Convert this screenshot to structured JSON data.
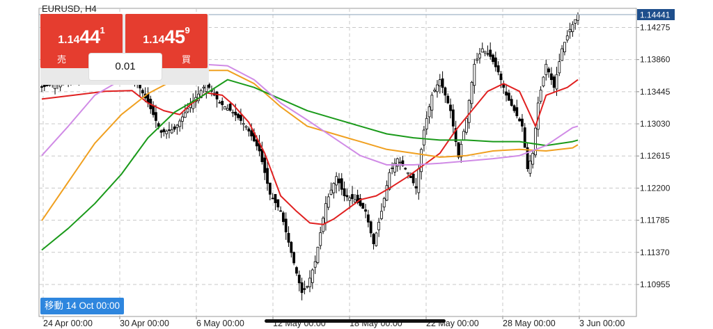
{
  "header": {
    "symbol": "EURUSD, H4"
  },
  "quote": {
    "sell": {
      "prefix": "1.14",
      "big": "44",
      "sup": "1",
      "label": "売"
    },
    "buy": {
      "prefix": "1.14",
      "big": "45",
      "sup": "9",
      "label": "買"
    },
    "lot": "0.01"
  },
  "goto": {
    "label": "移動 14 Oct 00:00"
  },
  "colors": {
    "bull": "#ffffff",
    "bear": "#000000",
    "ma_red": "#e02020",
    "ma_orange": "#f0a020",
    "ma_green": "#1a9a1a",
    "ma_violet": "#d08be6",
    "grid": "#c8c8c8",
    "price_marker": "#1e4f8c"
  },
  "chart_data": {
    "type": "candlestick",
    "symbol": "EURUSD",
    "timeframe": "H4",
    "current_price": 1.14441,
    "y_ticks": [
      "1.14441",
      "1.14275",
      "1.13860",
      "1.13445",
      "1.13030",
      "1.12615",
      "1.12200",
      "1.11785",
      "1.11370",
      "1.10955"
    ],
    "x_ticks": [
      "24 Apr 00:00",
      "30 Apr 00:00",
      "6 May 00:00",
      "12 May 00:00",
      "18 May 00:00",
      "22 May 00:00",
      "28 May 00:00",
      "3 Jun 00:00"
    ],
    "ylim": [
      1.1052,
      1.1458
    ],
    "grid": true,
    "close_path": [
      [
        0,
        1.135
      ],
      [
        10,
        1.136
      ],
      [
        20,
        1.1365
      ],
      [
        28,
        1.1372
      ],
      [
        35,
        1.1362
      ],
      [
        40,
        1.133
      ],
      [
        45,
        1.1292
      ],
      [
        50,
        1.1296
      ],
      [
        56,
        1.1328
      ],
      [
        62,
        1.1355
      ],
      [
        67,
        1.133
      ],
      [
        72,
        1.1318
      ],
      [
        77,
        1.13
      ],
      [
        82,
        1.1268
      ],
      [
        86,
        1.1212
      ],
      [
        90,
        1.119
      ],
      [
        93,
        1.115
      ],
      [
        96,
        1.111
      ],
      [
        98,
        1.1085
      ],
      [
        100,
        1.1093
      ],
      [
        103,
        1.1125
      ],
      [
        107,
        1.12
      ],
      [
        111,
        1.1235
      ],
      [
        114,
        1.121
      ],
      [
        118,
        1.1205
      ],
      [
        122,
        1.119
      ],
      [
        125,
        1.1148
      ],
      [
        128,
        1.119
      ],
      [
        131,
        1.124
      ],
      [
        134,
        1.1258
      ],
      [
        138,
        1.124
      ],
      [
        141,
        1.122
      ],
      [
        144,
        1.1295
      ],
      [
        147,
        1.134
      ],
      [
        150,
        1.136
      ],
      [
        154,
        1.132
      ],
      [
        157,
        1.126
      ],
      [
        160,
        1.131
      ],
      [
        163,
        1.138
      ],
      [
        166,
        1.14
      ],
      [
        169,
        1.139
      ],
      [
        172,
        1.137
      ],
      [
        175,
        1.134
      ],
      [
        178,
        1.132
      ],
      [
        181,
        1.13
      ],
      [
        183,
        1.1245
      ],
      [
        185,
        1.1265
      ],
      [
        187,
        1.133
      ],
      [
        190,
        1.138
      ],
      [
        193,
        1.135
      ],
      [
        196,
        1.14
      ],
      [
        199,
        1.1425
      ],
      [
        202,
        1.1444
      ]
    ],
    "series": [
      {
        "name": "",
        "color": "#e02020",
        "points": [
          [
            0,
            1.1335
          ],
          [
            12,
            1.134
          ],
          [
            24,
            1.1345
          ],
          [
            34,
            1.1346
          ],
          [
            40,
            1.133
          ],
          [
            46,
            1.132
          ],
          [
            52,
            1.1315
          ],
          [
            56,
            1.1328
          ],
          [
            62,
            1.1343
          ],
          [
            68,
            1.134
          ],
          [
            72,
            1.1328
          ],
          [
            78,
            1.1305
          ],
          [
            84,
            1.1265
          ],
          [
            90,
            1.121
          ],
          [
            96,
            1.119
          ],
          [
            101,
            1.1175
          ],
          [
            106,
            1.1173
          ],
          [
            110,
            1.118
          ],
          [
            114,
            1.119
          ],
          [
            120,
            1.1205
          ],
          [
            126,
            1.121
          ],
          [
            132,
            1.1222
          ],
          [
            138,
            1.1235
          ],
          [
            144,
            1.125
          ],
          [
            150,
            1.1265
          ],
          [
            156,
            1.1295
          ],
          [
            162,
            1.132
          ],
          [
            168,
            1.1345
          ],
          [
            174,
            1.1355
          ],
          [
            180,
            1.1345
          ],
          [
            186,
            1.13
          ],
          [
            190,
            1.134
          ],
          [
            194,
            1.1345
          ],
          [
            198,
            1.135
          ],
          [
            202,
            1.136
          ]
        ]
      },
      {
        "name": "",
        "color": "#f0a020",
        "points": [
          [
            0,
            1.1178
          ],
          [
            10,
            1.1228
          ],
          [
            20,
            1.1278
          ],
          [
            30,
            1.1315
          ],
          [
            40,
            1.1342
          ],
          [
            50,
            1.136
          ],
          [
            60,
            1.1372
          ],
          [
            70,
            1.1372
          ],
          [
            80,
            1.1355
          ],
          [
            90,
            1.1325
          ],
          [
            100,
            1.13
          ],
          [
            110,
            1.129
          ],
          [
            120,
            1.128
          ],
          [
            130,
            1.127
          ],
          [
            140,
            1.1265
          ],
          [
            150,
            1.126
          ],
          [
            160,
            1.1262
          ],
          [
            170,
            1.1268
          ],
          [
            180,
            1.127
          ],
          [
            190,
            1.1268
          ],
          [
            200,
            1.1272
          ],
          [
            202,
            1.1276
          ]
        ]
      },
      {
        "name": "",
        "color": "#1a9a1a",
        "points": [
          [
            0,
            1.114
          ],
          [
            10,
            1.1168
          ],
          [
            20,
            1.12
          ],
          [
            30,
            1.1238
          ],
          [
            40,
            1.1285
          ],
          [
            50,
            1.1318
          ],
          [
            60,
            1.1338
          ],
          [
            70,
            1.136
          ],
          [
            80,
            1.135
          ],
          [
            90,
            1.1335
          ],
          [
            100,
            1.132
          ],
          [
            110,
            1.131
          ],
          [
            120,
            1.13
          ],
          [
            130,
            1.129
          ],
          [
            140,
            1.1285
          ],
          [
            150,
            1.1282
          ],
          [
            160,
            1.1282
          ],
          [
            170,
            1.128
          ],
          [
            180,
            1.128
          ],
          [
            190,
            1.1275
          ],
          [
            200,
            1.128
          ],
          [
            202,
            1.1282
          ]
        ]
      },
      {
        "name": "",
        "color": "#d08be6",
        "points": [
          [
            0,
            1.1262
          ],
          [
            10,
            1.13
          ],
          [
            20,
            1.134
          ],
          [
            30,
            1.136
          ],
          [
            40,
            1.137
          ],
          [
            50,
            1.1378
          ],
          [
            60,
            1.138
          ],
          [
            70,
            1.1378
          ],
          [
            80,
            1.136
          ],
          [
            90,
            1.133
          ],
          [
            100,
            1.1308
          ],
          [
            110,
            1.1285
          ],
          [
            120,
            1.1262
          ],
          [
            130,
            1.125
          ],
          [
            140,
            1.125
          ],
          [
            150,
            1.1252
          ],
          [
            160,
            1.1255
          ],
          [
            170,
            1.1258
          ],
          [
            180,
            1.1262
          ],
          [
            190,
            1.1275
          ],
          [
            200,
            1.1298
          ],
          [
            202,
            1.13
          ]
        ]
      }
    ]
  }
}
